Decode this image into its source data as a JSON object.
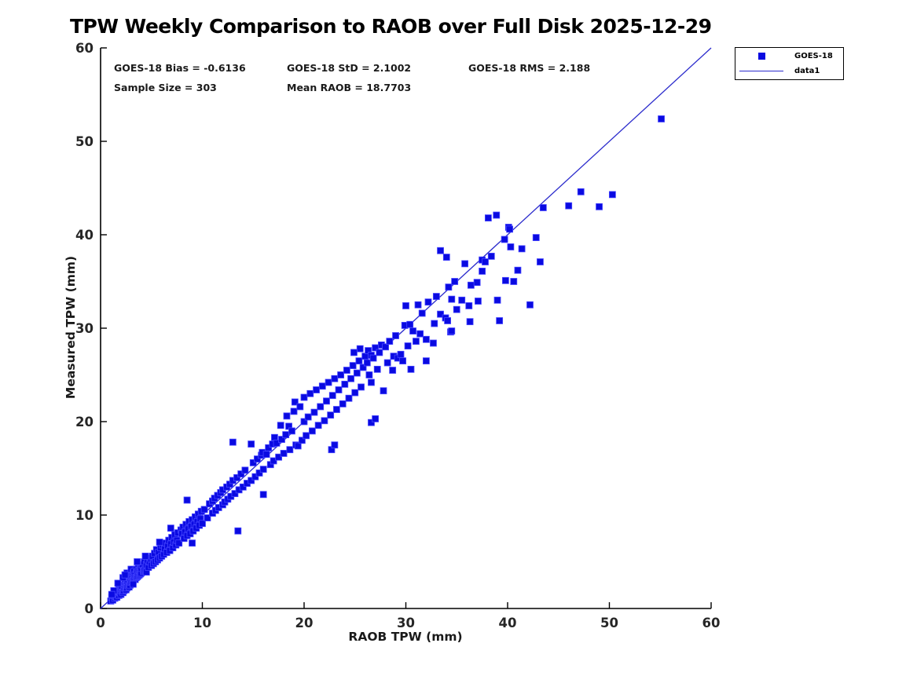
{
  "figure": {
    "title": "TPW Weekly Comparison to RAOB over Full Disk 2025-12-29"
  },
  "annotations": {
    "bias": "GOES-18 Bias = -0.6136",
    "std": "GOES-18 StD = 2.1002",
    "rms": "GOES-18 RMS = 2.188",
    "sample_size": "Sample Size = 303",
    "mean_raob": "Mean RAOB = 18.7703"
  },
  "legend": {
    "entries": [
      {
        "label": "GOES-18",
        "type": "marker"
      },
      {
        "label": "data1",
        "type": "line"
      }
    ]
  },
  "colors": {
    "marker_fill": "#0a0ae1",
    "marker_edge": "#4646ff",
    "line": "#2b2bcc",
    "axis": "#000000",
    "tick_label": "#262626"
  },
  "chart_data": {
    "type": "scatter",
    "title": "TPW Weekly Comparison to RAOB over Full Disk 2025-12-29",
    "xlabel": "RAOB TPW (mm)",
    "ylabel": "Measured TPW (mm)",
    "xlim": [
      0,
      60
    ],
    "ylim": [
      0,
      60
    ],
    "xticks": [
      0,
      10,
      20,
      30,
      40,
      50,
      60
    ],
    "yticks": [
      0,
      10,
      20,
      30,
      40,
      50,
      60
    ],
    "grid": false,
    "legend_position": "outside-top-right",
    "stats": {
      "bias": -0.6136,
      "std": 2.1002,
      "rms": 2.188,
      "sample_size": 303,
      "mean_raob": 18.7703
    },
    "series": [
      {
        "name": "GOES-18",
        "type": "scatter",
        "marker": "square",
        "points": [
          [
            1.0,
            0.8
          ],
          [
            1.1,
            1.2
          ],
          [
            1.2,
            0.9
          ],
          [
            1.3,
            1.4
          ],
          [
            1.4,
            1.1
          ],
          [
            1.5,
            1.3
          ],
          [
            1.5,
            1.8
          ],
          [
            1.6,
            1.2
          ],
          [
            1.7,
            1.6
          ],
          [
            1.8,
            1.4
          ],
          [
            1.8,
            2.0
          ],
          [
            1.9,
            1.7
          ],
          [
            2.0,
            1.5
          ],
          [
            2.0,
            2.2
          ],
          [
            2.1,
            1.9
          ],
          [
            2.1,
            2.4
          ],
          [
            2.2,
            1.7
          ],
          [
            2.3,
            2.5
          ],
          [
            2.3,
            1.9
          ],
          [
            2.4,
            2.2
          ],
          [
            2.4,
            2.8
          ],
          [
            2.5,
            2.0
          ],
          [
            2.5,
            2.5
          ],
          [
            2.6,
            2.9
          ],
          [
            2.6,
            2.2
          ],
          [
            2.7,
            2.5
          ],
          [
            2.7,
            3.1
          ],
          [
            2.8,
            2.3
          ],
          [
            2.9,
            3.2
          ],
          [
            2.9,
            2.5
          ],
          [
            3.0,
            2.8
          ],
          [
            3.0,
            3.4
          ],
          [
            2.2,
            3.3
          ],
          [
            1.7,
            2.7
          ],
          [
            2.6,
            3.8
          ],
          [
            3.0,
            4.2
          ],
          [
            2.4,
            3.6
          ],
          [
            1.3,
            1.9
          ],
          [
            1.1,
            1.5
          ],
          [
            3.1,
            2.9
          ],
          [
            3.1,
            3.5
          ],
          [
            3.2,
            3.0
          ],
          [
            3.2,
            3.8
          ],
          [
            3.3,
            3.2
          ],
          [
            3.3,
            4.0
          ],
          [
            3.4,
            3.1
          ],
          [
            3.4,
            3.6
          ],
          [
            3.5,
            3.3
          ],
          [
            3.5,
            4.2
          ],
          [
            3.6,
            3.4
          ],
          [
            3.6,
            3.9
          ],
          [
            3.7,
            3.5
          ],
          [
            3.7,
            4.3
          ],
          [
            3.8,
            3.6
          ],
          [
            3.8,
            4.1
          ],
          [
            3.9,
            3.7
          ],
          [
            3.9,
            4.5
          ],
          [
            4.0,
            3.8
          ],
          [
            4.0,
            4.3
          ],
          [
            4.1,
            4.7
          ],
          [
            4.2,
            4.0
          ],
          [
            4.3,
            4.1
          ],
          [
            4.3,
            5.0
          ],
          [
            4.4,
            4.2
          ],
          [
            4.5,
            4.7
          ],
          [
            4.5,
            3.9
          ],
          [
            4.6,
            5.2
          ],
          [
            4.7,
            4.4
          ],
          [
            4.8,
            5.0
          ],
          [
            4.9,
            5.4
          ],
          [
            5.0,
            4.6
          ],
          [
            3.6,
            5.0
          ],
          [
            4.4,
            5.6
          ],
          [
            3.2,
            2.6
          ],
          [
            5.1,
            5.6
          ],
          [
            5.2,
            4.8
          ],
          [
            5.3,
            5.9
          ],
          [
            5.4,
            5.0
          ],
          [
            5.5,
            6.3
          ],
          [
            5.6,
            5.2
          ],
          [
            5.7,
            6.0
          ],
          [
            5.8,
            5.4
          ],
          [
            5.9,
            6.5
          ],
          [
            6.0,
            5.6
          ],
          [
            6.1,
            6.8
          ],
          [
            6.2,
            5.8
          ],
          [
            6.3,
            6.4
          ],
          [
            6.4,
            7.0
          ],
          [
            6.5,
            6.0
          ],
          [
            6.6,
            6.7
          ],
          [
            6.7,
            7.3
          ],
          [
            6.8,
            6.2
          ],
          [
            6.9,
            6.9
          ],
          [
            7.0,
            7.6
          ],
          [
            7.1,
            6.5
          ],
          [
            7.2,
            7.1
          ],
          [
            7.3,
            7.9
          ],
          [
            7.4,
            6.8
          ],
          [
            7.5,
            7.3
          ],
          [
            7.6,
            8.1
          ],
          [
            7.7,
            7.0
          ],
          [
            7.9,
            8.4
          ],
          [
            6.9,
            8.6
          ],
          [
            5.8,
            7.1
          ],
          [
            8.0,
            8.0
          ],
          [
            8.1,
            8.7
          ],
          [
            8.2,
            7.5
          ],
          [
            8.3,
            8.2
          ],
          [
            8.4,
            9.0
          ],
          [
            8.5,
            7.8
          ],
          [
            8.5,
            11.6
          ],
          [
            8.6,
            8.5
          ],
          [
            8.7,
            9.3
          ],
          [
            8.8,
            8.0
          ],
          [
            8.9,
            8.8
          ],
          [
            9.0,
            9.5
          ],
          [
            9.1,
            8.3
          ],
          [
            9.2,
            9.0
          ],
          [
            9.3,
            9.8
          ],
          [
            9.4,
            8.6
          ],
          [
            9.5,
            9.3
          ],
          [
            9.6,
            10.1
          ],
          [
            9.7,
            8.9
          ],
          [
            9.8,
            9.6
          ],
          [
            9.9,
            10.4
          ],
          [
            10.0,
            9.1
          ],
          [
            10.2,
            10.6
          ],
          [
            10.5,
            9.7
          ],
          [
            10.7,
            11.2
          ],
          [
            9.0,
            7.0
          ],
          [
            11.0,
            11.5
          ],
          [
            11.0,
            10.2
          ],
          [
            11.2,
            11.8
          ],
          [
            11.3,
            10.5
          ],
          [
            11.5,
            12.1
          ],
          [
            11.6,
            10.8
          ],
          [
            11.8,
            12.4
          ],
          [
            12.0,
            11.1
          ],
          [
            12.0,
            12.7
          ],
          [
            12.2,
            11.4
          ],
          [
            12.4,
            13.0
          ],
          [
            12.5,
            11.7
          ],
          [
            12.7,
            13.3
          ],
          [
            12.8,
            12.0
          ],
          [
            13.0,
            13.7
          ],
          [
            13.0,
            17.8
          ],
          [
            13.2,
            12.3
          ],
          [
            13.4,
            14.0
          ],
          [
            13.5,
            8.3
          ],
          [
            13.6,
            12.7
          ],
          [
            13.8,
            14.4
          ],
          [
            14.0,
            13.0
          ],
          [
            14.2,
            14.8
          ],
          [
            14.4,
            13.4
          ],
          [
            14.8,
            17.6
          ],
          [
            14.8,
            13.7
          ],
          [
            15.0,
            15.6
          ],
          [
            15.2,
            14.1
          ],
          [
            15.6,
            14.5
          ],
          [
            16.0,
            12.2
          ],
          [
            15.4,
            16.0
          ],
          [
            15.8,
            16.4
          ],
          [
            15.9,
            16.7
          ],
          [
            16.0,
            14.9
          ],
          [
            16.3,
            16.5
          ],
          [
            16.5,
            17.2
          ],
          [
            16.7,
            15.4
          ],
          [
            16.9,
            17.6
          ],
          [
            17.0,
            15.8
          ],
          [
            17.1,
            18.3
          ],
          [
            17.3,
            17.7
          ],
          [
            17.5,
            16.2
          ],
          [
            17.7,
            19.6
          ],
          [
            17.8,
            18.1
          ],
          [
            18.0,
            16.6
          ],
          [
            18.2,
            18.6
          ],
          [
            18.3,
            20.6
          ],
          [
            18.5,
            19.5
          ],
          [
            18.6,
            17.0
          ],
          [
            18.8,
            19.0
          ],
          [
            19.0,
            21.1
          ],
          [
            19.1,
            22.1
          ],
          [
            19.2,
            17.5
          ],
          [
            19.4,
            17.4
          ],
          [
            19.6,
            21.6
          ],
          [
            20.0,
            20.0
          ],
          [
            19.8,
            18.0
          ],
          [
            20.0,
            22.6
          ],
          [
            20.2,
            18.5
          ],
          [
            20.4,
            20.5
          ],
          [
            20.6,
            23.0
          ],
          [
            20.8,
            19.0
          ],
          [
            21.0,
            21.0
          ],
          [
            21.2,
            23.4
          ],
          [
            21.4,
            19.6
          ],
          [
            21.6,
            21.6
          ],
          [
            21.8,
            23.8
          ],
          [
            22.0,
            20.1
          ],
          [
            22.2,
            22.2
          ],
          [
            22.4,
            24.2
          ],
          [
            22.6,
            20.7
          ],
          [
            22.7,
            17.0
          ],
          [
            22.8,
            22.8
          ],
          [
            23.0,
            24.6
          ],
          [
            23.0,
            17.5
          ],
          [
            23.2,
            21.3
          ],
          [
            23.4,
            23.4
          ],
          [
            23.6,
            25.0
          ],
          [
            23.8,
            21.9
          ],
          [
            24.0,
            24.0
          ],
          [
            24.2,
            25.5
          ],
          [
            24.6,
            24.6
          ],
          [
            24.4,
            22.5
          ],
          [
            24.8,
            26.0
          ],
          [
            25.0,
            23.1
          ],
          [
            25.2,
            25.2
          ],
          [
            25.4,
            26.5
          ],
          [
            25.6,
            23.7
          ],
          [
            25.8,
            25.8
          ],
          [
            26.0,
            27.0
          ],
          [
            25.5,
            27.8
          ],
          [
            24.9,
            27.4
          ],
          [
            26.2,
            26.3
          ],
          [
            26.3,
            27.6
          ],
          [
            26.4,
            25.0
          ],
          [
            26.6,
            27.1
          ],
          [
            26.6,
            19.9
          ],
          [
            26.6,
            24.2
          ],
          [
            26.8,
            26.8
          ],
          [
            27.0,
            27.9
          ],
          [
            27.0,
            20.3
          ],
          [
            27.2,
            25.6
          ],
          [
            27.4,
            27.4
          ],
          [
            27.6,
            28.2
          ],
          [
            27.8,
            23.3
          ],
          [
            28.0,
            28.0
          ],
          [
            28.2,
            26.3
          ],
          [
            28.4,
            28.6
          ],
          [
            28.7,
            25.5
          ],
          [
            28.8,
            27.0
          ],
          [
            29.0,
            29.2
          ],
          [
            29.2,
            26.8
          ],
          [
            29.5,
            27.2
          ],
          [
            29.7,
            26.5
          ],
          [
            29.9,
            30.3
          ],
          [
            30.0,
            32.4
          ],
          [
            30.2,
            28.1
          ],
          [
            30.4,
            30.4
          ],
          [
            30.5,
            25.6
          ],
          [
            30.7,
            29.7
          ],
          [
            31.0,
            28.6
          ],
          [
            31.2,
            32.5
          ],
          [
            31.4,
            29.4
          ],
          [
            31.6,
            31.6
          ],
          [
            32.0,
            28.8
          ],
          [
            32.0,
            26.5
          ],
          [
            32.2,
            32.8
          ],
          [
            32.7,
            28.4
          ],
          [
            32.8,
            30.5
          ],
          [
            33.0,
            33.4
          ],
          [
            33.4,
            31.5
          ],
          [
            33.4,
            38.3
          ],
          [
            33.9,
            31.1
          ],
          [
            34.0,
            37.6
          ],
          [
            34.1,
            30.8
          ],
          [
            34.2,
            34.4
          ],
          [
            34.4,
            29.6
          ],
          [
            34.5,
            33.1
          ],
          [
            34.5,
            29.7
          ],
          [
            34.8,
            35.0
          ],
          [
            35.0,
            32.0
          ],
          [
            35.5,
            33.0
          ],
          [
            35.8,
            36.9
          ],
          [
            36.2,
            32.4
          ],
          [
            36.3,
            30.7
          ],
          [
            36.4,
            34.6
          ],
          [
            37.0,
            34.9
          ],
          [
            37.1,
            32.9
          ],
          [
            37.5,
            36.1
          ],
          [
            37.5,
            37.3
          ],
          [
            37.8,
            37.1
          ],
          [
            38.1,
            41.8
          ],
          [
            38.4,
            37.7
          ],
          [
            38.9,
            42.1
          ],
          [
            39.0,
            33.0
          ],
          [
            39.2,
            30.8
          ],
          [
            39.7,
            39.5
          ],
          [
            39.8,
            35.1
          ],
          [
            40.1,
            40.8
          ],
          [
            40.2,
            40.6
          ],
          [
            40.3,
            38.7
          ],
          [
            40.6,
            35.0
          ],
          [
            41.0,
            36.2
          ],
          [
            41.4,
            38.5
          ],
          [
            42.2,
            32.5
          ],
          [
            42.8,
            39.7
          ],
          [
            43.2,
            37.1
          ],
          [
            43.5,
            42.9
          ],
          [
            46.0,
            43.1
          ],
          [
            47.2,
            44.6
          ],
          [
            49.0,
            43.0
          ],
          [
            50.3,
            44.3
          ],
          [
            55.1,
            52.4
          ]
        ]
      },
      {
        "name": "data1",
        "type": "line",
        "points": [
          [
            0,
            0
          ],
          [
            60,
            60
          ]
        ]
      }
    ]
  }
}
